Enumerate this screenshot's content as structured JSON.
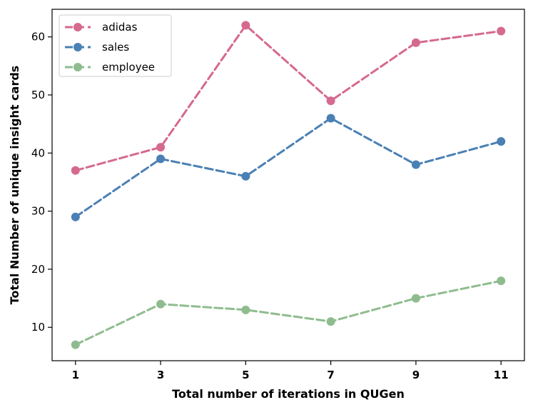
{
  "chart_data": {
    "type": "line",
    "x": [
      1,
      3,
      5,
      7,
      9,
      11
    ],
    "series": [
      {
        "name": "adidas",
        "color": "#d5698f",
        "values": [
          37,
          41,
          62,
          49,
          59,
          61
        ]
      },
      {
        "name": "sales",
        "color": "#4a80b4",
        "values": [
          29,
          39,
          36,
          46,
          38,
          42
        ]
      },
      {
        "name": "employee",
        "color": "#8fbc8f",
        "values": [
          7,
          14,
          13,
          11,
          15,
          18
        ]
      }
    ],
    "xlabel": "Total number of iterations in QUGen",
    "ylabel": "Total Number of unique insight cards",
    "xticks": [
      1,
      3,
      5,
      7,
      9,
      11
    ],
    "yticks": [
      10,
      20,
      30,
      40,
      50,
      60
    ],
    "xlim": [
      0.45,
      11.55
    ],
    "ylim": [
      4.25,
      64.75
    ],
    "line_style": "dashed",
    "marker": "circle",
    "grid": false,
    "legend_position": "upper-left"
  }
}
